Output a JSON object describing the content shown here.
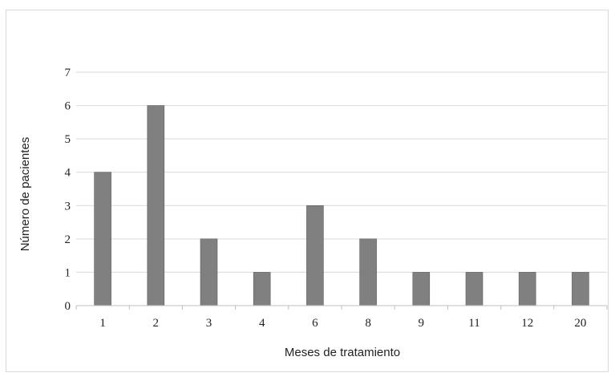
{
  "chart_data": {
    "type": "bar",
    "categories": [
      "1",
      "2",
      "3",
      "4",
      "6",
      "8",
      "9",
      "11",
      "12",
      "20"
    ],
    "values": [
      4,
      6,
      2,
      1,
      3,
      2,
      1,
      1,
      1,
      1
    ],
    "title": "",
    "xlabel": "Meses de tratamiento",
    "ylabel": "Número de pacientes",
    "ylim": [
      0,
      7
    ],
    "yticks": [
      "0",
      "1",
      "2",
      "3",
      "4",
      "5",
      "6",
      "7"
    ],
    "grid": true,
    "legend": "none",
    "colors": {
      "bar": "#808080",
      "bar_edge": "#5f5f5f",
      "grid": "#d9d9d9",
      "axis": "#bfbfbf"
    }
  }
}
